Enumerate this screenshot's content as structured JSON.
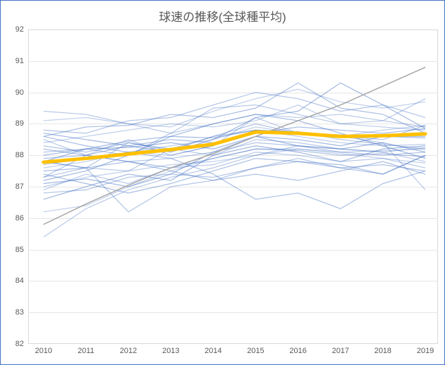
{
  "chart": {
    "type": "line",
    "title": "球速の推移(全球種平均)",
    "title_fontsize": 17,
    "title_color": "#595959",
    "outer_border_color": "#4472c4",
    "plot_border_color": "#d9d9d9",
    "background_color": "#ffffff",
    "grid_color": "#e6e6e6",
    "x": {
      "categories": [
        2010,
        2011,
        2012,
        2013,
        2014,
        2015,
        2016,
        2017,
        2018,
        2019
      ],
      "label_fontsize": 11,
      "label_color": "#595959"
    },
    "y": {
      "ylim": [
        82,
        92
      ],
      "ytick_step": 1,
      "ticks": [
        82,
        83,
        84,
        85,
        86,
        87,
        88,
        89,
        90,
        91,
        92
      ],
      "label_fontsize": 11,
      "label_color": "#595959"
    },
    "average_series": {
      "values": [
        87.78,
        87.9,
        88.04,
        88.18,
        88.35,
        88.74,
        88.7,
        88.6,
        88.62,
        88.68
      ],
      "color": "#ffc000",
      "line_width": 5
    },
    "gray_series": {
      "values": [
        85.8,
        86.45,
        87.05,
        87.6,
        88.05,
        88.6,
        89.1,
        89.6,
        90.2,
        90.8
      ],
      "color": "#a6a6a6",
      "line_width": 1.5
    },
    "team_series_color_base": "#4472c4",
    "team_series_opacity": 0.42,
    "team_series_line_width": 1.2,
    "team_series": [
      [
        89.1,
        89.2,
        89.0,
        88.9,
        89.4,
        89.8,
        90.1,
        89.7,
        89.5,
        89.7
      ],
      [
        89.4,
        89.3,
        89.0,
        88.7,
        89.0,
        89.3,
        89.2,
        89.3,
        89.1,
        89.8
      ],
      [
        88.8,
        88.7,
        89.1,
        89.2,
        89.6,
        90.0,
        89.8,
        89.4,
        89.6,
        89.2
      ],
      [
        88.6,
        88.9,
        88.95,
        89.3,
        89.2,
        89.5,
        90.3,
        89.5,
        89.3,
        88.7
      ],
      [
        88.7,
        88.5,
        88.3,
        88.1,
        88.5,
        89.2,
        89.4,
        90.3,
        89.6,
        88.85
      ],
      [
        88.4,
        88.6,
        88.8,
        89.0,
        88.9,
        89.1,
        89.6,
        89.0,
        88.9,
        88.8
      ],
      [
        88.1,
        88.2,
        88.0,
        88.7,
        89.5,
        89.6,
        89.3,
        89.0,
        89.1,
        88.9
      ],
      [
        88.3,
        88.1,
        88.4,
        88.15,
        88.6,
        89.0,
        88.7,
        88.6,
        88.5,
        88.95
      ],
      [
        87.9,
        88.0,
        88.3,
        88.5,
        88.4,
        88.7,
        88.9,
        88.8,
        88.7,
        88.85
      ],
      [
        88.0,
        88.2,
        88.25,
        88.4,
        88.2,
        88.6,
        88.5,
        88.3,
        88.6,
        88.6
      ],
      [
        87.7,
        87.9,
        88.1,
        88.0,
        88.3,
        88.8,
        88.6,
        88.4,
        88.3,
        88.35
      ],
      [
        87.8,
        87.6,
        87.5,
        88.2,
        88.0,
        88.5,
        88.4,
        88.2,
        88.1,
        87.8
      ],
      [
        87.3,
        88.0,
        87.8,
        87.9,
        88.1,
        88.4,
        88.3,
        88.1,
        88.0,
        88.1
      ],
      [
        87.5,
        87.6,
        87.8,
        87.6,
        87.9,
        88.2,
        88.15,
        88.0,
        88.05,
        87.95
      ],
      [
        87.1,
        87.25,
        87.0,
        87.4,
        88.1,
        88.6,
        88.3,
        88.2,
        88.4,
        88.1
      ],
      [
        87.0,
        87.3,
        87.5,
        87.7,
        87.8,
        88.0,
        88.2,
        88.05,
        87.9,
        87.75
      ],
      [
        86.9,
        87.4,
        87.1,
        87.6,
        87.7,
        88.1,
        88.0,
        87.8,
        87.9,
        87.6
      ],
      [
        86.8,
        86.9,
        87.3,
        87.4,
        87.3,
        87.6,
        87.8,
        87.6,
        87.7,
        87.5
      ],
      [
        87.4,
        87.1,
        86.8,
        87.1,
        87.5,
        87.9,
        87.8,
        87.7,
        87.4,
        88.0
      ],
      [
        86.6,
        87.0,
        87.4,
        87.2,
        88.0,
        88.3,
        88.1,
        87.8,
        88.2,
        88.3
      ],
      [
        86.2,
        86.4,
        87.0,
        87.5,
        87.9,
        88.2,
        88.2,
        88.1,
        88.15,
        88.2
      ],
      [
        85.4,
        86.3,
        86.9,
        87.3,
        87.6,
        88.0,
        88.3,
        88.2,
        88.1,
        88.25
      ],
      [
        87.8,
        87.6,
        86.2,
        87.0,
        87.2,
        87.6,
        87.9,
        87.6,
        87.4,
        88.0
      ],
      [
        88.2,
        88.0,
        87.8,
        87.5,
        87.2,
        87.4,
        87.2,
        87.5,
        87.8,
        87.4
      ],
      [
        87.2,
        87.5,
        88.0,
        88.6,
        89.0,
        89.3,
        89.1,
        88.7,
        88.3,
        87.9
      ],
      [
        87.6,
        87.8,
        88.1,
        88.3,
        88.5,
        88.9,
        88.7,
        88.6,
        88.8,
        88.95
      ],
      [
        88.5,
        88.0,
        88.5,
        88.0,
        88.3,
        89.2,
        88.7,
        88.6,
        88.4,
        86.9
      ],
      [
        87.3,
        87.6,
        88.4,
        88.2,
        88.6,
        88.8,
        88.75,
        88.5,
        88.35,
        88.2
      ],
      [
        88.6,
        88.3,
        88.1,
        87.9,
        87.4,
        86.6,
        86.8,
        86.3,
        87.1,
        87.5
      ],
      [
        87.8,
        88.2,
        88.45,
        88.6,
        88.55,
        88.8,
        88.7,
        88.65,
        88.6,
        88.55
      ]
    ]
  }
}
